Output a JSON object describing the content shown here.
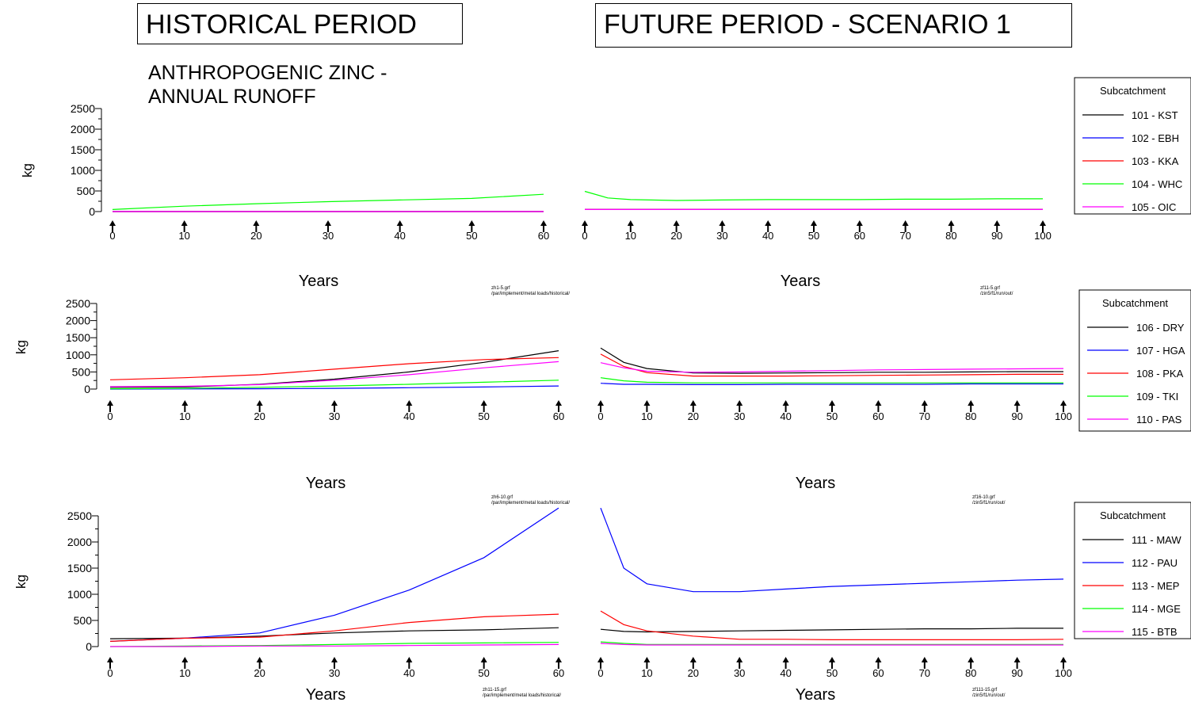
{
  "header": {
    "historical_title": "HISTORICAL PERIOD",
    "future_title": "FUTURE PERIOD - SCENARIO 1",
    "subtitle_line1": "ANTHROPOGENIC ZINC -",
    "subtitle_line2": "ANNUAL RUNOFF"
  },
  "chart_data": [
    {
      "id": "row1",
      "type": "line",
      "ylabel": "kg",
      "xlabel": "Years",
      "ylim": [
        0,
        2500
      ],
      "yticks": [
        "0",
        "500",
        "1000",
        "1500",
        "2000",
        "2500"
      ],
      "legend_title": "Subcatchment",
      "legend_position": "right",
      "historical": {
        "xlim": [
          0,
          60
        ],
        "xticks": [
          "0",
          "10",
          "20",
          "30",
          "40",
          "50",
          "60"
        ],
        "note_line1": "zh1-5.grf",
        "note_line2": "/par/implement/metal loads/historical/",
        "x": [
          0,
          10,
          20,
          30,
          40,
          50,
          60
        ],
        "series": [
          {
            "name": "101 - KST",
            "color": "#000000",
            "values": [
              0,
              0,
              0,
              0,
              0,
              0,
              0
            ]
          },
          {
            "name": "102 - EBH",
            "color": "#0000ff",
            "values": [
              0,
              0,
              0,
              0,
              0,
              0,
              0
            ]
          },
          {
            "name": "103 - KKA",
            "color": "#ff0000",
            "values": [
              0,
              0,
              0,
              0,
              0,
              0,
              0
            ]
          },
          {
            "name": "104 - WHC",
            "color": "#00ff00",
            "values": [
              50,
              130,
              190,
              240,
              280,
              320,
              420
            ]
          },
          {
            "name": "105 - OIC",
            "color": "#ff00ff",
            "values": [
              0,
              0,
              0,
              0,
              0,
              0,
              0
            ]
          }
        ]
      },
      "future": {
        "xlim": [
          0,
          100
        ],
        "xticks": [
          "0",
          "10",
          "20",
          "30",
          "40",
          "50",
          "60",
          "70",
          "80",
          "90",
          "100"
        ],
        "note_line1": "zf11-5.grf",
        "note_line2": "/zin5/f1/run/out/",
        "x": [
          0,
          5,
          10,
          20,
          30,
          40,
          50,
          60,
          70,
          80,
          90,
          100
        ],
        "series": [
          {
            "name": "101 - KST",
            "color": "#000000",
            "values": [
              50,
              50,
              50,
              50,
              50,
              50,
              50,
              50,
              50,
              50,
              50,
              50
            ]
          },
          {
            "name": "102 - EBH",
            "color": "#0000ff",
            "values": [
              50,
              50,
              50,
              50,
              50,
              50,
              50,
              50,
              50,
              50,
              50,
              50
            ]
          },
          {
            "name": "103 - KKA",
            "color": "#ff0000",
            "values": [
              50,
              50,
              50,
              50,
              50,
              50,
              50,
              50,
              50,
              50,
              50,
              50
            ]
          },
          {
            "name": "104 - WHC",
            "color": "#00ff00",
            "values": [
              490,
              330,
              290,
              270,
              280,
              290,
              290,
              290,
              300,
              300,
              310,
              310
            ]
          },
          {
            "name": "105 - OIC",
            "color": "#ff00ff",
            "values": [
              50,
              50,
              50,
              50,
              50,
              50,
              50,
              50,
              50,
              50,
              50,
              50
            ]
          }
        ]
      }
    },
    {
      "id": "row2",
      "type": "line",
      "ylabel": "kg",
      "xlabel": "Years",
      "ylim": [
        0,
        2500
      ],
      "yticks": [
        "0",
        "500",
        "1000",
        "1500",
        "2000",
        "2500"
      ],
      "legend_title": "Subcatchment",
      "legend_position": "right",
      "historical": {
        "xlim": [
          0,
          60
        ],
        "xticks": [
          "0",
          "10",
          "20",
          "30",
          "40",
          "50",
          "60"
        ],
        "note_line1": "zh6-10.grf",
        "note_line2": "/par/implement/metal loads/historical/",
        "x": [
          0,
          10,
          20,
          30,
          40,
          50,
          60
        ],
        "series": [
          {
            "name": "106 - DRY",
            "color": "#000000",
            "values": [
              50,
              60,
              140,
              290,
              500,
              780,
              1120
            ]
          },
          {
            "name": "107 - HGA",
            "color": "#0000ff",
            "values": [
              0,
              5,
              10,
              20,
              40,
              60,
              90
            ]
          },
          {
            "name": "108 - PKA",
            "color": "#ff0000",
            "values": [
              270,
              330,
              420,
              580,
              740,
              860,
              920
            ]
          },
          {
            "name": "109 - TKI",
            "color": "#00ff00",
            "values": [
              10,
              20,
              50,
              90,
              140,
              200,
              260
            ]
          },
          {
            "name": "110 - PAS",
            "color": "#ff00ff",
            "values": [
              70,
              80,
              130,
              260,
              420,
              620,
              800
            ]
          }
        ]
      },
      "future": {
        "xlim": [
          0,
          100
        ],
        "xticks": [
          "0",
          "10",
          "20",
          "30",
          "40",
          "50",
          "60",
          "70",
          "80",
          "90",
          "100"
        ],
        "note_line1": "zf16-10.grf",
        "note_line2": "/zin5/f1/run/out/",
        "x": [
          0,
          5,
          10,
          20,
          30,
          40,
          50,
          60,
          70,
          80,
          90,
          100
        ],
        "series": [
          {
            "name": "106 - DRY",
            "color": "#000000",
            "values": [
              1200,
              780,
              600,
              470,
              460,
              470,
              480,
              490,
              490,
              500,
              510,
              510
            ]
          },
          {
            "name": "107 - HGA",
            "color": "#0000ff",
            "values": [
              170,
              140,
              140,
              130,
              130,
              140,
              140,
              140,
              140,
              150,
              150,
              150
            ]
          },
          {
            "name": "108 - PKA",
            "color": "#ff0000",
            "values": [
              1020,
              660,
              480,
              380,
              380,
              380,
              390,
              400,
              410,
              420,
              430,
              430
            ]
          },
          {
            "name": "109 - TKI",
            "color": "#00ff00",
            "values": [
              330,
              240,
              200,
              180,
              180,
              180,
              180,
              180,
              180,
              180,
              180,
              180
            ]
          },
          {
            "name": "110 - PAS",
            "color": "#ff00ff",
            "values": [
              770,
              620,
              520,
              490,
              500,
              520,
              540,
              560,
              570,
              580,
              590,
              600
            ]
          }
        ]
      }
    },
    {
      "id": "row3",
      "type": "line",
      "ylabel": "kg",
      "xlabel": "Years",
      "ylim": [
        0,
        2500
      ],
      "yticks": [
        "0",
        "500",
        "1000",
        "1500",
        "2000",
        "2500"
      ],
      "legend_title": "Subcatchment",
      "legend_position": "right",
      "historical": {
        "xlim": [
          0,
          60
        ],
        "xticks": [
          "0",
          "10",
          "20",
          "30",
          "40",
          "50",
          "60"
        ],
        "note_line1": "zh11-15.grf",
        "note_line2": "/par/implement/metal loads/historical/",
        "x": [
          0,
          10,
          20,
          30,
          40,
          50,
          60
        ],
        "series": [
          {
            "name": "111 - MAW",
            "color": "#000000",
            "values": [
              150,
              160,
              200,
              260,
              300,
              320,
              360
            ]
          },
          {
            "name": "112 - PAU",
            "color": "#0000ff",
            "values": [
              100,
              160,
              260,
              600,
              1080,
              1700,
              2650
            ]
          },
          {
            "name": "113 - MEP",
            "color": "#ff0000",
            "values": [
              100,
              160,
              180,
              300,
              460,
              570,
              620
            ]
          },
          {
            "name": "114 - MGE",
            "color": "#00ff00",
            "values": [
              0,
              10,
              20,
              40,
              60,
              70,
              80
            ]
          },
          {
            "name": "115 - BTB",
            "color": "#ff00ff",
            "values": [
              0,
              0,
              10,
              10,
              20,
              30,
              40
            ]
          }
        ]
      },
      "future": {
        "xlim": [
          0,
          100
        ],
        "xticks": [
          "0",
          "10",
          "20",
          "30",
          "40",
          "50",
          "60",
          "70",
          "80",
          "90",
          "100"
        ],
        "note_line1": "zf111-15.grf",
        "note_line2": "/zin5/f1/run/out/",
        "x": [
          0,
          5,
          10,
          20,
          30,
          40,
          50,
          60,
          70,
          80,
          90,
          100
        ],
        "series": [
          {
            "name": "111 - MAW",
            "color": "#000000",
            "values": [
              330,
              290,
              280,
              290,
              300,
              310,
              320,
              330,
              340,
              340,
              350,
              350
            ]
          },
          {
            "name": "112 - PAU",
            "color": "#0000ff",
            "values": [
              2650,
              1500,
              1200,
              1050,
              1050,
              1100,
              1150,
              1180,
              1210,
              1240,
              1270,
              1290
            ]
          },
          {
            "name": "113 - MEP",
            "color": "#ff0000",
            "values": [
              680,
              420,
              300,
              200,
              140,
              140,
              130,
              130,
              130,
              130,
              130,
              140
            ]
          },
          {
            "name": "114 - MGE",
            "color": "#00ff00",
            "values": [
              90,
              60,
              40,
              40,
              40,
              40,
              40,
              40,
              40,
              40,
              40,
              40
            ]
          },
          {
            "name": "115 - BTB",
            "color": "#ff00ff",
            "values": [
              60,
              40,
              30,
              30,
              30,
              30,
              30,
              30,
              30,
              30,
              30,
              30
            ]
          }
        ]
      }
    }
  ]
}
